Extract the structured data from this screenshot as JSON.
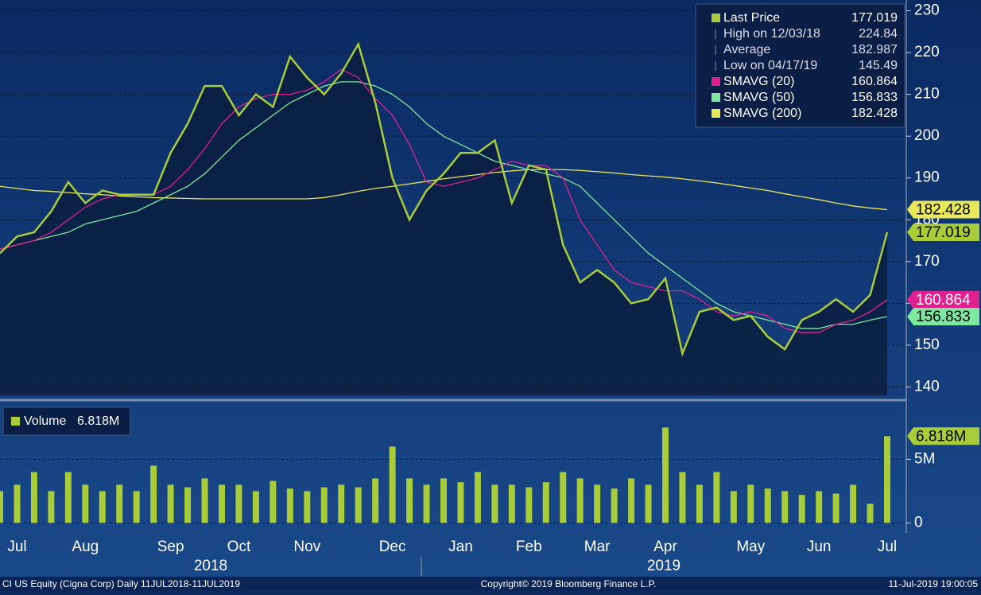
{
  "chart_data": [
    {
      "type": "line",
      "categories": [
        null,
        "Jul",
        null,
        null,
        null,
        "Aug",
        null,
        null,
        null,
        null,
        "Sep",
        null,
        null,
        null,
        "Oct",
        null,
        null,
        null,
        "Nov",
        null,
        null,
        null,
        null,
        "Dec",
        null,
        null,
        null,
        "Jan",
        null,
        null,
        null,
        "Feb",
        null,
        null,
        null,
        "Mar",
        null,
        null,
        null,
        "Apr",
        null,
        null,
        null,
        null,
        "May",
        null,
        null,
        null,
        "Jun",
        null,
        null,
        null,
        "Jul"
      ],
      "year_labels": [
        "2018",
        "2019"
      ],
      "series": [
        {
          "name": "Last Price",
          "color": "#a8cc3a",
          "values": [
            172,
            176,
            177,
            182,
            189,
            184,
            187,
            186,
            186,
            186,
            196,
            203,
            212,
            212,
            205,
            210,
            207,
            219,
            214,
            210,
            215,
            222,
            208,
            190,
            180,
            187,
            191,
            196,
            196,
            199,
            184,
            193,
            192,
            174,
            165,
            168,
            165,
            160,
            161,
            166,
            148,
            158,
            159,
            156,
            157,
            152,
            149,
            156,
            158,
            161,
            158,
            162,
            177.019
          ]
        },
        {
          "name": "SMAVG (20)",
          "color": "#e0208f",
          "values": [
            173,
            174,
            175,
            177,
            180,
            183,
            185,
            186,
            186,
            186,
            188,
            192,
            197,
            203,
            207,
            209,
            210,
            210,
            211,
            213,
            216,
            214,
            209,
            205,
            198,
            189,
            188,
            189,
            190,
            192,
            194,
            193,
            193,
            190,
            180,
            174,
            168,
            165,
            164,
            163,
            163,
            161,
            158,
            157,
            158,
            157,
            154,
            153,
            153,
            155,
            156,
            158,
            160.864
          ]
        },
        {
          "name": "SMAVG (50)",
          "color": "#7ee8a0",
          "values": [
            173,
            174,
            175,
            176,
            177,
            179,
            180,
            181,
            182,
            184,
            186,
            188,
            191,
            195,
            199,
            202,
            205,
            208,
            210,
            212,
            213,
            213,
            212,
            210,
            207,
            203,
            200,
            198,
            196,
            194,
            193,
            192,
            191,
            190,
            188,
            184,
            180,
            176,
            172,
            169,
            166,
            163,
            160,
            158,
            157,
            156,
            155,
            154,
            154,
            155,
            155,
            156,
            156.833
          ]
        },
        {
          "name": "SMAVG (200)",
          "color": "#e8e85a",
          "values": [
            188,
            187.5,
            187,
            186.8,
            186.5,
            186.2,
            186,
            185.7,
            185.5,
            185.3,
            185.2,
            185.1,
            185,
            185,
            185,
            185,
            185,
            185,
            185,
            185.3,
            186,
            186.8,
            187.5,
            188,
            188.6,
            189.2,
            189.8,
            190.3,
            190.8,
            191.3,
            191.7,
            192,
            192,
            192,
            191.8,
            191.5,
            191.2,
            190.8,
            190.5,
            190.2,
            189.8,
            189.3,
            188.8,
            188.2,
            187.6,
            187,
            186.2,
            185.5,
            184.8,
            184,
            183.3,
            182.8,
            182.428
          ]
        }
      ],
      "legend_stats": [
        {
          "name": "High on 12/03/18",
          "value": 224.84
        },
        {
          "name": "Average",
          "value": 182.987
        },
        {
          "name": "Low on 04/17/19",
          "value": 145.49
        }
      ],
      "ylim": [
        138,
        232
      ],
      "yticks": [
        140,
        150,
        160,
        170,
        180,
        190,
        200,
        210,
        220,
        230
      ],
      "grid": true
    },
    {
      "type": "bar",
      "series": [
        {
          "name": "Volume",
          "color": "#a8cc3a",
          "values": [
            2.5,
            3,
            4,
            2.5,
            4,
            3,
            2.5,
            3,
            2.5,
            4.5,
            3,
            2.8,
            3.5,
            3,
            3,
            2.5,
            3.3,
            2.7,
            2.5,
            2.8,
            3,
            2.8,
            3.5,
            6,
            3.5,
            3,
            3.5,
            3.2,
            4,
            3,
            3,
            2.8,
            3.2,
            4,
            3.5,
            3,
            2.7,
            3.5,
            3,
            7.5,
            4,
            3,
            4,
            2.5,
            3,
            2.7,
            2.5,
            2.2,
            2.5,
            2.3,
            3,
            1.5,
            6.818
          ],
          "value_labels": [
            null,
            null,
            null,
            null,
            null,
            null,
            null,
            null,
            null,
            null,
            null,
            null,
            null,
            null,
            null,
            null,
            null,
            null,
            null,
            null,
            null,
            null,
            null,
            null,
            null,
            null,
            null,
            null,
            null,
            null,
            null,
            null,
            null,
            null,
            null,
            null,
            null,
            null,
            null,
            null,
            null,
            null,
            null,
            null,
            null,
            null,
            null,
            null,
            null,
            null,
            null,
            null,
            "6.818M"
          ]
        }
      ],
      "ylim": [
        -0.6,
        9.4
      ],
      "yticks": [
        0,
        {
          "value": 5,
          "label": "5M"
        }
      ],
      "grid": true
    }
  ],
  "footer": {
    "left": "CI US Equity (Cigna Corp)  Daily 11JUL2018-11JUL2019",
    "center": "Copyright© 2019 Bloomberg Finance L.P.",
    "right": "11-Jul-2019 19:00:05"
  }
}
